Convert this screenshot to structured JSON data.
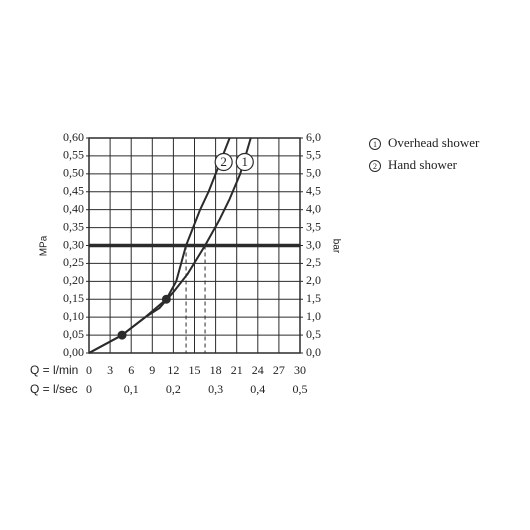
{
  "chart_data": {
    "type": "line",
    "xlabel": "Q = l/min",
    "x2label": "Q = l/sec",
    "ylabel": "MPa",
    "y2label": "bar",
    "xlim": [
      0,
      30
    ],
    "xticks": [
      0,
      3,
      6,
      9,
      12,
      15,
      18,
      21,
      24,
      27,
      30
    ],
    "x2lim": [
      0,
      0.5
    ],
    "x2ticks": [
      0,
      {
        "value": 0.1,
        "label": "0,1"
      },
      {
        "value": 0.2,
        "label": "0,2"
      },
      {
        "value": 0.3,
        "label": "0,3"
      },
      {
        "value": 0.4,
        "label": "0,4"
      },
      {
        "value": 0.5,
        "label": "0,5"
      }
    ],
    "ylim": [
      0,
      0.6
    ],
    "yticks": [
      {
        "value": 0,
        "label": "0,00"
      },
      {
        "value": 0.05,
        "label": "0,05"
      },
      {
        "value": 0.1,
        "label": "0,10"
      },
      {
        "value": 0.15,
        "label": "0,15"
      },
      {
        "value": 0.2,
        "label": "0,20"
      },
      {
        "value": 0.25,
        "label": "0,25"
      },
      {
        "value": 0.3,
        "label": "0,30"
      },
      {
        "value": 0.35,
        "label": "0,35"
      },
      {
        "value": 0.4,
        "label": "0,40"
      },
      {
        "value": 0.45,
        "label": "0,45"
      },
      {
        "value": 0.5,
        "label": "0,50"
      },
      {
        "value": 0.55,
        "label": "0,55"
      },
      {
        "value": 0.6,
        "label": "0,60"
      }
    ],
    "y2lim": [
      0,
      6
    ],
    "y2ticks": [
      {
        "value": 0,
        "label": "0,0"
      },
      {
        "value": 0.5,
        "label": "0,5"
      },
      {
        "value": 1,
        "label": "1,0"
      },
      {
        "value": 1.5,
        "label": "1,5"
      },
      {
        "value": 2,
        "label": "2,0"
      },
      {
        "value": 2.5,
        "label": "2,5"
      },
      {
        "value": 3,
        "label": "3,0"
      },
      {
        "value": 3.5,
        "label": "3,5"
      },
      {
        "value": 4,
        "label": "4,0"
      },
      {
        "value": 4.5,
        "label": "4,5"
      },
      {
        "value": 5,
        "label": "5,0"
      },
      {
        "value": 5.5,
        "label": "5,5"
      },
      {
        "value": 6,
        "label": "6,0"
      }
    ],
    "grid": true,
    "color": "#2b2b2b",
    "series": [
      {
        "name": "Overhead shower",
        "label": "1",
        "color": "#2b2b2b",
        "x": [
          0,
          4.7,
          8,
          10,
          12,
          14,
          16.5,
          18.5,
          20,
          21.5,
          23
        ],
        "values": [
          0,
          0.05,
          0.1,
          0.125,
          0.17,
          0.22,
          0.3,
          0.37,
          0.43,
          0.5,
          0.6
        ]
      },
      {
        "name": "Hand shower",
        "label": "2",
        "color": "#2b2b2b",
        "x": [
          0,
          4.7,
          8,
          11,
          12.4,
          13.8,
          15,
          15.8,
          17,
          18,
          20
        ],
        "values": [
          0,
          0.05,
          0.1,
          0.15,
          0.2,
          0.3,
          0.36,
          0.4,
          0.45,
          0.5,
          0.6
        ]
      }
    ],
    "reference_y": 0.3,
    "reference_x": [
      13.8,
      16.5
    ],
    "points": {
      "x": [
        4.7,
        11
      ],
      "values": [
        0.05,
        0.15
      ]
    }
  }
}
